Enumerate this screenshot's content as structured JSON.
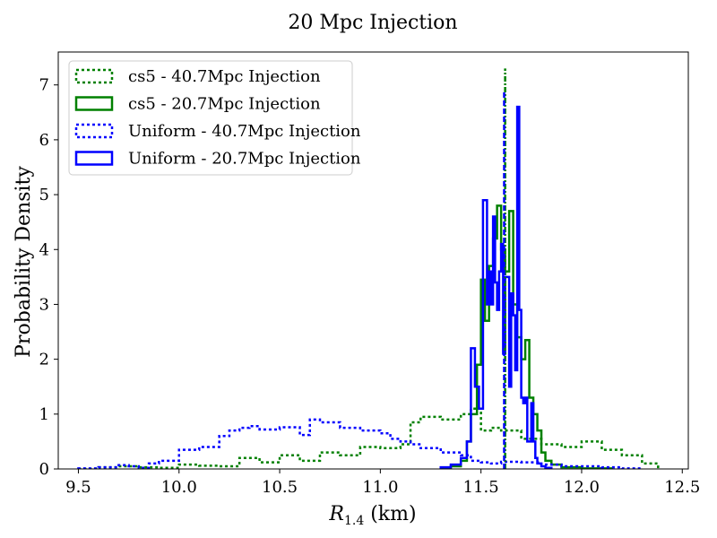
{
  "chart_data": {
    "type": "histogram-step",
    "title": "20 Mpc Injection",
    "xlabel_main": "R",
    "xlabel_sub": "1.4",
    "xlabel_unit": " (km)",
    "ylabel": "Probability Density",
    "xlim": [
      9.4,
      12.53
    ],
    "ylim": [
      0,
      7.6
    ],
    "xticks": [
      9.5,
      10.0,
      10.5,
      11.0,
      11.5,
      12.0,
      12.5
    ],
    "yticks": [
      0,
      1,
      2,
      3,
      4,
      5,
      6,
      7
    ],
    "xtick_labels": [
      "9.5",
      "10.0",
      "10.5",
      "11.0",
      "11.5",
      "12.0",
      "12.5"
    ],
    "ytick_labels": [
      "0",
      "1",
      "2",
      "3",
      "4",
      "5",
      "6",
      "7"
    ],
    "grid": false,
    "legend_position": "top-left",
    "injection_markers": [
      {
        "x": 11.62,
        "color": "#008000",
        "style": "dashdot",
        "ymax": 7.3
      },
      {
        "x": 11.615,
        "color": "#0000ff",
        "style": "dashed",
        "ymax": 6.9
      }
    ],
    "series": [
      {
        "name": "cs5 - 40.7Mpc Injection",
        "color": "#008000",
        "linestyle": "dotted",
        "edges": [
          9.5,
          9.6,
          9.7,
          9.8,
          9.9,
          10.0,
          10.1,
          10.2,
          10.3,
          10.4,
          10.5,
          10.6,
          10.7,
          10.8,
          10.9,
          11.0,
          11.1,
          11.15,
          11.2,
          11.3,
          11.4,
          11.45,
          11.5,
          11.55,
          11.6,
          11.7,
          11.8,
          11.9,
          12.0,
          12.1,
          12.2,
          12.3,
          12.38
        ],
        "values": [
          0.0,
          0.03,
          0.05,
          0.03,
          0.02,
          0.08,
          0.06,
          0.05,
          0.2,
          0.12,
          0.25,
          0.15,
          0.3,
          0.25,
          0.4,
          0.38,
          0.45,
          0.85,
          0.95,
          0.9,
          1.0,
          1.1,
          0.7,
          0.75,
          0.7,
          0.55,
          0.45,
          0.4,
          0.5,
          0.35,
          0.25,
          0.1
        ]
      },
      {
        "name": "cs5 - 20.7Mpc Injection",
        "color": "#008000",
        "linestyle": "solid",
        "edges": [
          11.3,
          11.35,
          11.4,
          11.43,
          11.45,
          11.48,
          11.5,
          11.52,
          11.54,
          11.56,
          11.58,
          11.6,
          11.62,
          11.64,
          11.66,
          11.68,
          11.7,
          11.72,
          11.74,
          11.76,
          11.78,
          11.8,
          11.82,
          11.85,
          11.9,
          12.0,
          12.15
        ],
        "values": [
          0.02,
          0.05,
          0.15,
          0.5,
          1.0,
          1.9,
          3.45,
          2.7,
          3.7,
          4.2,
          4.8,
          4.0,
          3.6,
          4.7,
          3.0,
          2.4,
          2.0,
          2.35,
          1.3,
          1.0,
          0.7,
          0.3,
          0.15,
          0.08,
          0.03,
          0.01
        ]
      },
      {
        "name": "Uniform - 40.7Mpc Injection",
        "color": "#0000ff",
        "linestyle": "dotted",
        "edges": [
          9.5,
          9.6,
          9.7,
          9.75,
          9.8,
          9.85,
          9.9,
          10.0,
          10.1,
          10.2,
          10.25,
          10.3,
          10.35,
          10.4,
          10.5,
          10.6,
          10.65,
          10.7,
          10.8,
          10.9,
          11.0,
          11.05,
          11.1,
          11.15,
          11.2,
          11.3,
          11.4,
          11.45,
          11.5,
          11.55,
          11.6,
          11.7,
          11.8,
          11.9,
          12.0,
          12.1,
          12.2,
          12.3
        ],
        "values": [
          0.01,
          0.03,
          0.07,
          0.05,
          0.02,
          0.1,
          0.15,
          0.35,
          0.4,
          0.6,
          0.7,
          0.75,
          0.78,
          0.72,
          0.76,
          0.62,
          0.9,
          0.85,
          0.75,
          0.7,
          0.65,
          0.55,
          0.5,
          0.45,
          0.38,
          0.3,
          0.25,
          0.15,
          0.12,
          0.1,
          0.13,
          0.12,
          0.08,
          0.05,
          0.05,
          0.03,
          0.01
        ]
      },
      {
        "name": "Uniform - 20.7Mpc Injection",
        "color": "#0000ff",
        "linestyle": "solid",
        "edges": [
          11.3,
          11.35,
          11.4,
          11.43,
          11.45,
          11.47,
          11.49,
          11.51,
          11.53,
          11.54,
          11.55,
          11.56,
          11.57,
          11.58,
          11.59,
          11.6,
          11.61,
          11.62,
          11.63,
          11.64,
          11.65,
          11.66,
          11.67,
          11.68,
          11.69,
          11.7,
          11.71,
          11.72,
          11.73,
          11.74,
          11.75,
          11.76,
          11.77,
          11.78,
          11.8,
          11.82,
          11.85
        ],
        "values": [
          0.03,
          0.08,
          0.2,
          0.5,
          2.2,
          1.5,
          1.1,
          4.9,
          3.0,
          3.6,
          3.0,
          4.6,
          3.4,
          2.9,
          3.6,
          4.1,
          2.1,
          3.5,
          3.5,
          1.5,
          3.2,
          2.8,
          1.8,
          6.6,
          2.9,
          1.3,
          1.2,
          1.3,
          0.5,
          0.5,
          1.2,
          0.5,
          0.2,
          0.1,
          0.05,
          0.02
        ]
      }
    ]
  }
}
